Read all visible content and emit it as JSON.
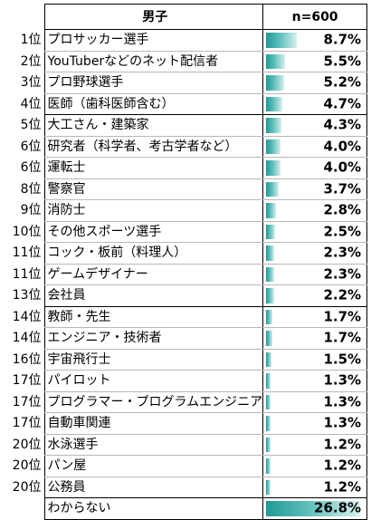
{
  "header": {
    "group_label": "男子",
    "sample_label": "n=600"
  },
  "rows": [
    {
      "rank": "1位",
      "name": "プロサッカー選手",
      "value": "8.7%",
      "pct": 8.7
    },
    {
      "rank": "2位",
      "name": "YouTuberなどのネット配信者",
      "value": "5.5%",
      "pct": 5.5
    },
    {
      "rank": "3位",
      "name": "プロ野球選手",
      "value": "5.2%",
      "pct": 5.2
    },
    {
      "rank": "4位",
      "name": "医師（歯科医師含む）",
      "value": "4.7%",
      "pct": 4.7
    },
    {
      "rank": "5位",
      "name": "大工さん・建築家",
      "value": "4.3%",
      "pct": 4.3
    },
    {
      "rank": "6位",
      "name": "研究者（科学者、考古学者など）",
      "value": "4.0%",
      "pct": 4.0
    },
    {
      "rank": "6位",
      "name": "運転士",
      "value": "4.0%",
      "pct": 4.0
    },
    {
      "rank": "8位",
      "name": "警察官",
      "value": "3.7%",
      "pct": 3.7
    },
    {
      "rank": "9位",
      "name": "消防士",
      "value": "2.8%",
      "pct": 2.8
    },
    {
      "rank": "10位",
      "name": "その他スポーツ選手",
      "value": "2.5%",
      "pct": 2.5
    },
    {
      "rank": "11位",
      "name": "コック・板前（料理人）",
      "value": "2.3%",
      "pct": 2.3
    },
    {
      "rank": "11位",
      "name": "ゲームデザイナー",
      "value": "2.3%",
      "pct": 2.3
    },
    {
      "rank": "13位",
      "name": "会社員",
      "value": "2.2%",
      "pct": 2.2
    },
    {
      "rank": "14位",
      "name": "教師・先生",
      "value": "1.7%",
      "pct": 1.7
    },
    {
      "rank": "14位",
      "name": "エンジニア・技術者",
      "value": "1.7%",
      "pct": 1.7
    },
    {
      "rank": "16位",
      "name": "宇宙飛行士",
      "value": "1.5%",
      "pct": 1.5
    },
    {
      "rank": "17位",
      "name": "パイロット",
      "value": "1.3%",
      "pct": 1.3
    },
    {
      "rank": "17位",
      "name": "プログラマー・プログラムエンジニア",
      "value": "1.3%",
      "pct": 1.3
    },
    {
      "rank": "17位",
      "name": "自動車関連",
      "value": "1.3%",
      "pct": 1.3
    },
    {
      "rank": "20位",
      "name": "水泳選手",
      "value": "1.2%",
      "pct": 1.2
    },
    {
      "rank": "20位",
      "name": "パン屋",
      "value": "1.2%",
      "pct": 1.2
    },
    {
      "rank": "20位",
      "name": "公務員",
      "value": "1.2%",
      "pct": 1.2
    },
    {
      "rank": "",
      "name": "わからない",
      "value": "26.8%",
      "pct": 26.8
    }
  ],
  "colors": {
    "bar_start": "#1f9a96",
    "bar_end": "#d6efee"
  }
}
